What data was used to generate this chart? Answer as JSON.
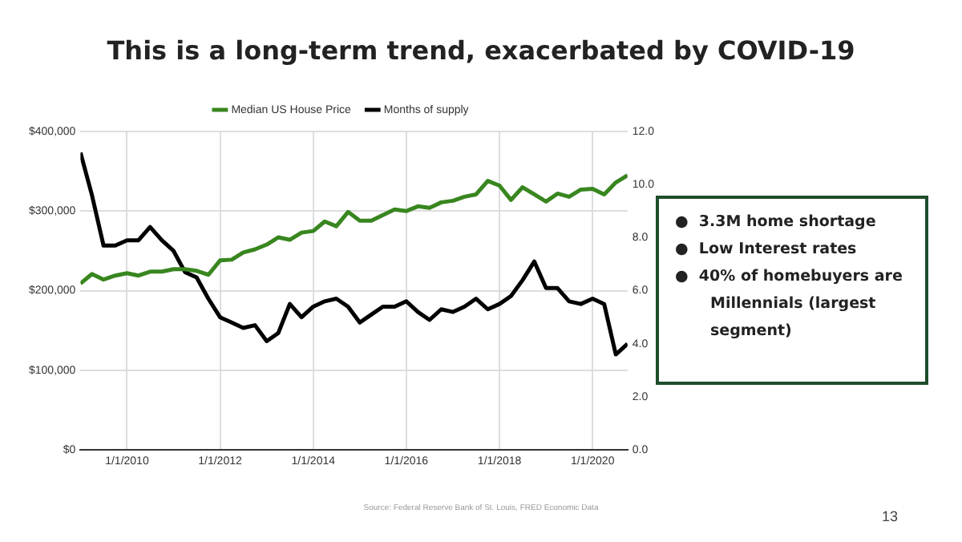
{
  "chart_data": {
    "type": "line",
    "title": "This is a long-term trend, exacerbated by COVID-19",
    "x": [
      "2009-01",
      "2009-04",
      "2009-07",
      "2009-10",
      "2010-01",
      "2010-04",
      "2010-07",
      "2010-10",
      "2011-01",
      "2011-04",
      "2011-07",
      "2011-10",
      "2012-01",
      "2012-04",
      "2012-07",
      "2012-10",
      "2013-01",
      "2013-04",
      "2013-07",
      "2013-10",
      "2014-01",
      "2014-04",
      "2014-07",
      "2014-10",
      "2015-01",
      "2015-04",
      "2015-07",
      "2015-10",
      "2016-01",
      "2016-04",
      "2016-07",
      "2016-10",
      "2017-01",
      "2017-04",
      "2017-07",
      "2017-10",
      "2018-01",
      "2018-04",
      "2018-07",
      "2018-10",
      "2019-01",
      "2019-04",
      "2019-07",
      "2019-10",
      "2020-01",
      "2020-04",
      "2020-07",
      "2020-10"
    ],
    "series": [
      {
        "name": "Median US House Price",
        "color": "#38861f",
        "values": [
          209000,
          221000,
          214000,
          219000,
          222000,
          219000,
          224000,
          224000,
          227000,
          227000,
          225000,
          220000,
          238000,
          239000,
          248000,
          252000,
          258000,
          267000,
          264000,
          273000,
          275000,
          287000,
          281000,
          299000,
          288000,
          288000,
          295000,
          302000,
          300000,
          306000,
          304000,
          311000,
          313000,
          318000,
          321000,
          338000,
          332000,
          314000,
          330000,
          321000,
          312000,
          322000,
          318000,
          327000,
          328000,
          321000,
          336000,
          345000
        ]
      },
      {
        "name": "Months of supply",
        "color": "#000000",
        "axis": "y2",
        "values": [
          11.2,
          9.6,
          7.7,
          7.7,
          7.9,
          7.9,
          8.4,
          7.9,
          7.5,
          6.7,
          6.5,
          5.7,
          5.0,
          4.8,
          4.6,
          4.7,
          4.1,
          4.4,
          5.5,
          5.0,
          5.4,
          5.6,
          5.7,
          5.4,
          4.8,
          5.1,
          5.4,
          5.4,
          5.6,
          5.2,
          4.9,
          5.3,
          5.2,
          5.4,
          5.7,
          5.3,
          5.5,
          5.8,
          6.4,
          7.1,
          6.1,
          6.1,
          5.6,
          5.5,
          5.7,
          5.5,
          3.6,
          4.0
        ]
      }
    ],
    "xlim": [
      "2009-01",
      "2020-10"
    ],
    "xticks": [
      {
        "value": "2010-01-01",
        "label": "1/1/2010"
      },
      {
        "value": "2012-01-01",
        "label": "1/1/2012"
      },
      {
        "value": "2014-01-01",
        "label": "1/1/2014"
      },
      {
        "value": "2016-01-01",
        "label": "1/1/2016"
      },
      {
        "value": "2018-01-01",
        "label": "1/1/2018"
      },
      {
        "value": "2020-01-01",
        "label": "1/1/2020"
      }
    ],
    "ylim": [
      0,
      400000
    ],
    "yticks": [
      {
        "value": 0,
        "label": "$0"
      },
      {
        "value": 100000,
        "label": "$100,000"
      },
      {
        "value": 200000,
        "label": "$200,000"
      },
      {
        "value": 300000,
        "label": "$300,000"
      },
      {
        "value": 400000,
        "label": "$400,000"
      }
    ],
    "y2lim": [
      0,
      12
    ],
    "y2ticks": [
      {
        "value": 0,
        "label": "0.0"
      },
      {
        "value": 2,
        "label": "2.0"
      },
      {
        "value": 4,
        "label": "4.0"
      },
      {
        "value": 6,
        "label": "6.0"
      },
      {
        "value": 8,
        "label": "8.0"
      },
      {
        "value": 10,
        "label": "10.0"
      },
      {
        "value": 12,
        "label": "12.0"
      }
    ],
    "grid": true,
    "legend": "top",
    "marker": "none",
    "line_style": "solid",
    "annotations": [
      "●  3.3M home shortage",
      "●  Low Interest rates",
      "●  40% of homebuyers are Millennials (largest segment)",
      "Source: Federal Reserve Bank of St. Louis, FRED Economic Data",
      "13"
    ]
  }
}
